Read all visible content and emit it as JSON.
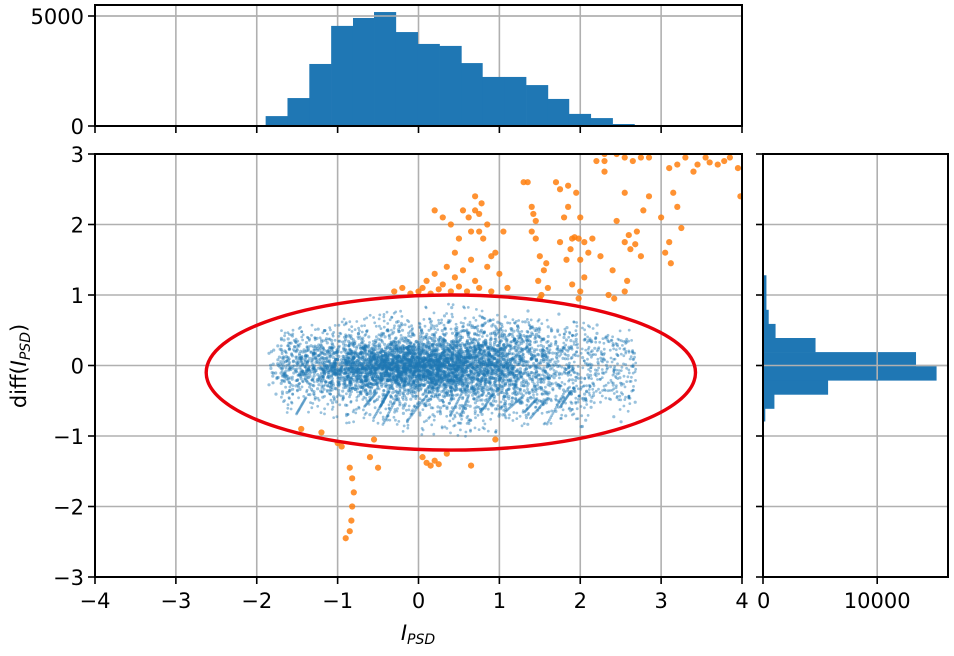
{
  "chart_data": [
    {
      "id": "main-scatter",
      "type": "scatter",
      "xlabel": "I_PSD",
      "ylabel": "diff(I_PSD)",
      "xlim": [
        -4,
        4
      ],
      "ylim": [
        -3,
        3
      ],
      "xticks": [
        -4,
        -3,
        -2,
        -1,
        0,
        1,
        2,
        3,
        4
      ],
      "xtick_labels": [
        "−4",
        "−3",
        "−2",
        "−1",
        "0",
        "1",
        "2",
        "3",
        "4"
      ],
      "yticks": [
        -3,
        -2,
        -1,
        0,
        1,
        2,
        3
      ],
      "ytick_labels": [
        "−3",
        "−2",
        "−1",
        "0",
        "1",
        "2",
        "3"
      ],
      "grid": true,
      "series": [
        {
          "name": "inliers",
          "color": "#1f77b4",
          "description": "dense cloud of small translucent points, roughly x in [-1.9, 2.8], y in [-1.1, 1.0], densest near y=0"
        },
        {
          "name": "outliers",
          "color": "#ff7f0e",
          "points": [
            [
              -0.9,
              -2.45
            ],
            [
              -0.85,
              -2.35
            ],
            [
              -0.83,
              -2.2
            ],
            [
              -0.82,
              -2.0
            ],
            [
              -0.8,
              -1.8
            ],
            [
              -0.82,
              -1.6
            ],
            [
              -0.85,
              -1.45
            ],
            [
              -0.6,
              -1.3
            ],
            [
              -0.5,
              -1.45
            ],
            [
              -0.55,
              -1.05
            ],
            [
              -0.95,
              -1.15
            ],
            [
              -1.2,
              -0.95
            ],
            [
              -1.45,
              -0.9
            ],
            [
              -1.0,
              -1.1
            ],
            [
              0.1,
              -1.38
            ],
            [
              0.15,
              -1.42
            ],
            [
              0.2,
              -1.35
            ],
            [
              0.25,
              -1.4
            ],
            [
              0.05,
              -1.3
            ],
            [
              0.65,
              -1.42
            ],
            [
              0.95,
              -1.05
            ],
            [
              0.35,
              -1.25
            ],
            [
              -0.3,
              1.05
            ],
            [
              -0.2,
              1.1
            ],
            [
              -0.1,
              1.02
            ],
            [
              0.0,
              1.05
            ],
            [
              0.05,
              1.1
            ],
            [
              0.1,
              1.2
            ],
            [
              0.15,
              1.02
            ],
            [
              0.2,
              1.3
            ],
            [
              0.25,
              1.08
            ],
            [
              0.3,
              1.15
            ],
            [
              0.35,
              1.4
            ],
            [
              0.4,
              1.05
            ],
            [
              0.45,
              1.25
            ],
            [
              0.5,
              1.12
            ],
            [
              0.55,
              1.35
            ],
            [
              0.6,
              1.05
            ],
            [
              0.65,
              1.5
            ],
            [
              0.7,
              1.2
            ],
            [
              0.75,
              1.1
            ],
            [
              0.8,
              1.8
            ],
            [
              0.85,
              1.4
            ],
            [
              0.9,
              1.05
            ],
            [
              0.95,
              1.6
            ],
            [
              1.0,
              1.3
            ],
            [
              1.05,
              1.9
            ],
            [
              1.1,
              1.1
            ],
            [
              0.45,
              1.6
            ],
            [
              0.5,
              1.8
            ],
            [
              0.4,
              2.0
            ],
            [
              0.2,
              2.2
            ],
            [
              0.3,
              2.1
            ],
            [
              0.55,
              2.2
            ],
            [
              0.62,
              2.1
            ],
            [
              0.7,
              2.2
            ],
            [
              0.75,
              1.9
            ],
            [
              0.85,
              2.0
            ],
            [
              0.65,
              1.9
            ],
            [
              0.7,
              2.4
            ],
            [
              0.78,
              2.3
            ],
            [
              0.75,
              2.15
            ],
            [
              0.9,
              1.55
            ],
            [
              1.3,
              2.6
            ],
            [
              1.35,
              2.6
            ],
            [
              1.4,
              2.25
            ],
            [
              1.42,
              2.15
            ],
            [
              1.45,
              2.05
            ],
            [
              1.4,
              1.9
            ],
            [
              1.45,
              1.8
            ],
            [
              1.5,
              1.55
            ],
            [
              1.55,
              1.35
            ],
            [
              1.48,
              1.2
            ],
            [
              1.52,
              1.0
            ],
            [
              1.5,
              0.95
            ],
            [
              1.6,
              1.1
            ],
            [
              1.58,
              1.45
            ],
            [
              1.7,
              2.6
            ],
            [
              1.75,
              2.5
            ],
            [
              1.85,
              2.55
            ],
            [
              1.95,
              2.45
            ],
            [
              2.0,
              2.1
            ],
            [
              1.9,
              1.8
            ],
            [
              1.88,
              1.65
            ],
            [
              1.93,
              1.82
            ],
            [
              1.98,
              1.8
            ],
            [
              2.05,
              1.75
            ],
            [
              2.1,
              1.6
            ],
            [
              2.25,
              1.55
            ],
            [
              2.15,
              1.8
            ],
            [
              2.0,
              1.05
            ],
            [
              1.98,
              0.95
            ],
            [
              2.05,
              1.25
            ],
            [
              1.75,
              1.75
            ],
            [
              1.8,
              2.1
            ],
            [
              1.85,
              2.25
            ],
            [
              1.83,
              1.5
            ],
            [
              1.9,
              1.15
            ],
            [
              2.0,
              1.5
            ],
            [
              2.3,
              2.9
            ],
            [
              2.3,
              2.75
            ],
            [
              2.55,
              2.45
            ],
            [
              2.45,
              2.05
            ],
            [
              2.6,
              1.85
            ],
            [
              2.55,
              1.75
            ],
            [
              2.68,
              1.72
            ],
            [
              2.7,
              1.9
            ],
            [
              2.62,
              1.65
            ],
            [
              2.75,
              1.55
            ],
            [
              2.78,
              2.2
            ],
            [
              2.85,
              2.4
            ],
            [
              2.58,
              1.2
            ],
            [
              2.55,
              1.05
            ],
            [
              2.42,
              0.95
            ],
            [
              2.35,
              1.0
            ],
            [
              2.4,
              1.35
            ],
            [
              3.4,
              2.75
            ],
            [
              3.45,
              2.85
            ],
            [
              3.55,
              2.95
            ],
            [
              3.6,
              2.88
            ],
            [
              3.7,
              2.85
            ],
            [
              3.78,
              2.9
            ],
            [
              3.85,
              2.95
            ],
            [
              3.95,
              2.8
            ],
            [
              3.98,
              2.4
            ],
            [
              3.2,
              2.85
            ],
            [
              3.1,
              2.8
            ],
            [
              2.2,
              2.9
            ],
            [
              2.3,
              3.0
            ],
            [
              2.45,
              3.0
            ],
            [
              2.55,
              2.95
            ],
            [
              2.65,
              2.9
            ],
            [
              2.75,
              2.95
            ],
            [
              2.85,
              2.95
            ],
            [
              3.3,
              2.95
            ],
            [
              3.15,
              2.45
            ],
            [
              3.2,
              2.25
            ],
            [
              3.25,
              1.95
            ],
            [
              3.1,
              1.75
            ],
            [
              3.05,
              1.6
            ],
            [
              3.12,
              1.45
            ],
            [
              3.0,
              2.1
            ]
          ]
        }
      ],
      "annotation": {
        "type": "ellipse",
        "color": "#e8000b",
        "center": [
          0.4,
          -0.1
        ],
        "width": 6.05,
        "height": 2.2
      }
    },
    {
      "id": "top-histogram",
      "type": "bar",
      "orientation": "vertical",
      "xlim": [
        -4,
        4
      ],
      "ylim": [
        0,
        5500
      ],
      "yticks": [
        0,
        5000
      ],
      "ytick_labels": [
        "0",
        "5000"
      ],
      "grid": true,
      "color": "#1f77b4",
      "bin_edges": [
        -1.89,
        -1.62,
        -1.35,
        -1.08,
        -0.81,
        -0.55,
        -0.28,
        -0.01,
        0.26,
        0.53,
        0.79,
        1.06,
        1.33,
        1.6,
        1.86,
        2.13,
        2.4,
        2.67
      ],
      "values": [
        450,
        1270,
        2820,
        4550,
        4910,
        5180,
        4270,
        3730,
        3640,
        2860,
        2230,
        2230,
        1860,
        1230,
        550,
        360,
        90
      ]
    },
    {
      "id": "right-histogram",
      "type": "bar",
      "orientation": "horizontal",
      "ylim": [
        -3,
        3
      ],
      "xlim": [
        0,
        16200
      ],
      "xticks": [
        0,
        10000
      ],
      "xtick_labels": [
        "0",
        "10000"
      ],
      "grid": true,
      "color": "#1f77b4",
      "bin_edges": [
        1.28,
        0.79,
        0.59,
        0.39,
        0.19,
        -0.01,
        -0.21,
        -0.41,
        -0.61,
        -0.79
      ],
      "values": [
        300,
        500,
        1100,
        4600,
        13400,
        15200,
        5700,
        1000,
        200
      ]
    }
  ]
}
